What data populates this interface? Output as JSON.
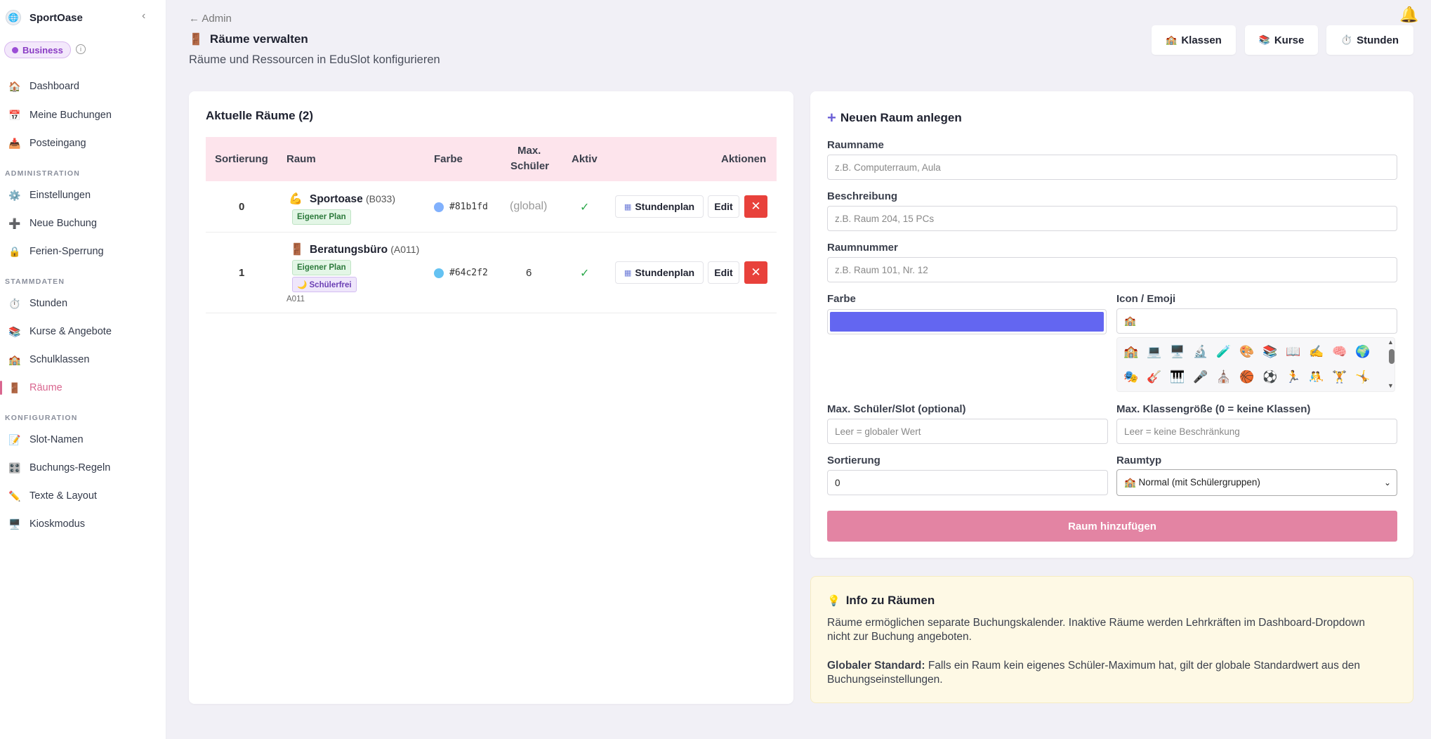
{
  "sidebar": {
    "brand": "SportOase",
    "collapse_icon": "‹",
    "plan": "Business",
    "items": [
      {
        "label": "Dashboard",
        "icon": "🏠"
      },
      {
        "label": "Meine Buchungen",
        "icon": "📅"
      },
      {
        "label": "Posteingang",
        "icon": "📥"
      },
      {
        "label": "Einstellungen",
        "icon": "⚙️"
      },
      {
        "label": "Neue Buchung",
        "icon": "➕"
      },
      {
        "label": "Ferien-Sperrung",
        "icon": "🔒"
      },
      {
        "label": "Stunden",
        "icon": "⏱️"
      },
      {
        "label": "Kurse & Angebote",
        "icon": "📚"
      },
      {
        "label": "Schulklassen",
        "icon": "🏫"
      },
      {
        "label": "Räume",
        "icon": "🚪"
      },
      {
        "label": "Slot-Namen",
        "icon": "📝"
      },
      {
        "label": "Buchungs-Regeln",
        "icon": "🎛️"
      },
      {
        "label": "Texte & Layout",
        "icon": "✏️"
      },
      {
        "label": "Kioskmodus",
        "icon": "🖥️"
      }
    ],
    "sections": [
      "ADMINISTRATION",
      "STAMMDATEN",
      "KONFIGURATION"
    ]
  },
  "header": {
    "back": "← Admin",
    "title_icon": "🚪",
    "title": "Räume verwalten",
    "subtitle": "Räume und Ressourcen in EduSlot konfigurieren",
    "buttons": [
      {
        "label": "Klassen",
        "icon": "🏫"
      },
      {
        "label": "Kurse",
        "icon": "📚"
      },
      {
        "label": "Stunden",
        "icon": "⏱️"
      }
    ]
  },
  "table": {
    "title": "Aktuelle Räume (2)",
    "headers": {
      "sort": "Sortierung",
      "room": "Raum",
      "color": "Farbe",
      "max1": "Max.",
      "max2": "Schüler",
      "active": "Aktiv",
      "actions": "Aktionen"
    },
    "rows": [
      {
        "sort": "0",
        "icon": "💪",
        "name": "Sportoase",
        "code": "(B033)",
        "tags": [
          "Eigener Plan"
        ],
        "sub": "",
        "color": "#81b1fd",
        "color_text": "#81b1fd",
        "max": "(global)",
        "active": "✓"
      },
      {
        "sort": "1",
        "icon": "🚪",
        "name": "Beratungsbüro",
        "code": "(A011)",
        "tags": [
          "Eigener Plan",
          "🌙 Schülerfrei"
        ],
        "sub": "A011",
        "color": "#64c2f2",
        "color_text": "#64c2f2",
        "max": "6",
        "active": "✓"
      }
    ],
    "btn_schedule": "Stundenplan",
    "btn_edit": "Edit",
    "btn_delete": "✕"
  },
  "form": {
    "title": "Neuen Raum anlegen",
    "name_label": "Raumname",
    "name_placeholder": "z.B. Computerraum, Aula",
    "desc_label": "Beschreibung",
    "desc_placeholder": "z.B. Raum 204, 15 PCs",
    "num_label": "Raumnummer",
    "num_placeholder": "z.B. Raum 101, Nr. 12",
    "color_label": "Farbe",
    "color_value": "#6366f1",
    "icon_label": "Icon / Emoji",
    "icon_value": "🏫",
    "emojis": [
      "🏫",
      "💻",
      "🖥️",
      "🔬",
      "🧪",
      "🎨",
      "📚",
      "📖",
      "✍️",
      "🧠",
      "🌍",
      "🎭",
      "🎸",
      "🎹",
      "🎤",
      "⛪",
      "🏀",
      "⚽",
      "🏃",
      "🤼",
      "🏋️",
      "🤸"
    ],
    "max_label": "Max. Schüler/Slot (optional)",
    "max_placeholder": "Leer = globaler Wert",
    "class_label": "Max. Klassengröße (0 = keine Klassen)",
    "class_placeholder": "Leer = keine Beschränkung",
    "sort_label": "Sortierung",
    "sort_value": "0",
    "type_label": "Raumtyp",
    "type_value": "🏫 Normal (mit Schülergruppen)",
    "submit": "Raum hinzufügen"
  },
  "info": {
    "title": "Info zu Räumen",
    "p1a": "Räume ermöglichen separate Buchungskalender. Inaktive Räume werden Lehrkräften im Dashboard-Dropdown",
    "p1b": "nicht zur Buchung angeboten.",
    "p2_bold": "Globaler Standard:",
    "p2a": "Falls ein Raum kein eigenes Schüler-Maximum hat, gilt der globale Standardwert aus den",
    "p2b": "Buchungseinstellungen."
  }
}
